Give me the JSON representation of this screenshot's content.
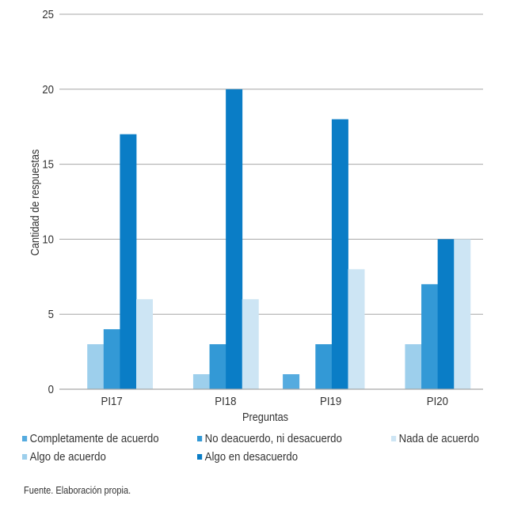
{
  "chart_data": {
    "type": "bar",
    "title": "",
    "xlabel": "Preguntas",
    "ylabel": "Cantidad de respuestas",
    "ylim": [
      0,
      25
    ],
    "yticks": [
      0,
      5,
      10,
      15,
      20,
      25
    ],
    "grid": true,
    "legend_position": "bottom",
    "categories": [
      "PI17",
      "PI18",
      "PI19",
      "PI20"
    ],
    "series": [
      {
        "name": "Completamente de acuerdo",
        "color": "#55abdf",
        "values": [
          0,
          0,
          1,
          0
        ]
      },
      {
        "name": "Algo de acuerdo",
        "color": "#9dcfec",
        "values": [
          3,
          1,
          0,
          3
        ]
      },
      {
        "name": "No deacuerdo, ni desacuerdo",
        "color": "#3399d6",
        "values": [
          4,
          3,
          3,
          7
        ]
      },
      {
        "name": "Algo en desacuerdo",
        "color": "#0a7dc6",
        "values": [
          17,
          20,
          18,
          10
        ]
      },
      {
        "name": "Nada de acuerdo",
        "color": "#cde5f4",
        "values": [
          6,
          6,
          8,
          10
        ]
      }
    ]
  },
  "legend": {
    "items": [
      {
        "label": "Completamente de acuerdo",
        "color": "#55abdf"
      },
      {
        "label": "No deacuerdo, ni desacuerdo",
        "color": "#3399d6"
      },
      {
        "label": "Nada de acuerdo",
        "color": "#cde5f4"
      },
      {
        "label": "Algo de acuerdo",
        "color": "#9dcfec"
      },
      {
        "label": "Algo en desacuerdo",
        "color": "#0a7dc6"
      }
    ]
  },
  "source_note": "Fuente. Elaboración propia.",
  "colors": {
    "gridline": "#a6a6a6",
    "text": "#333333"
  }
}
